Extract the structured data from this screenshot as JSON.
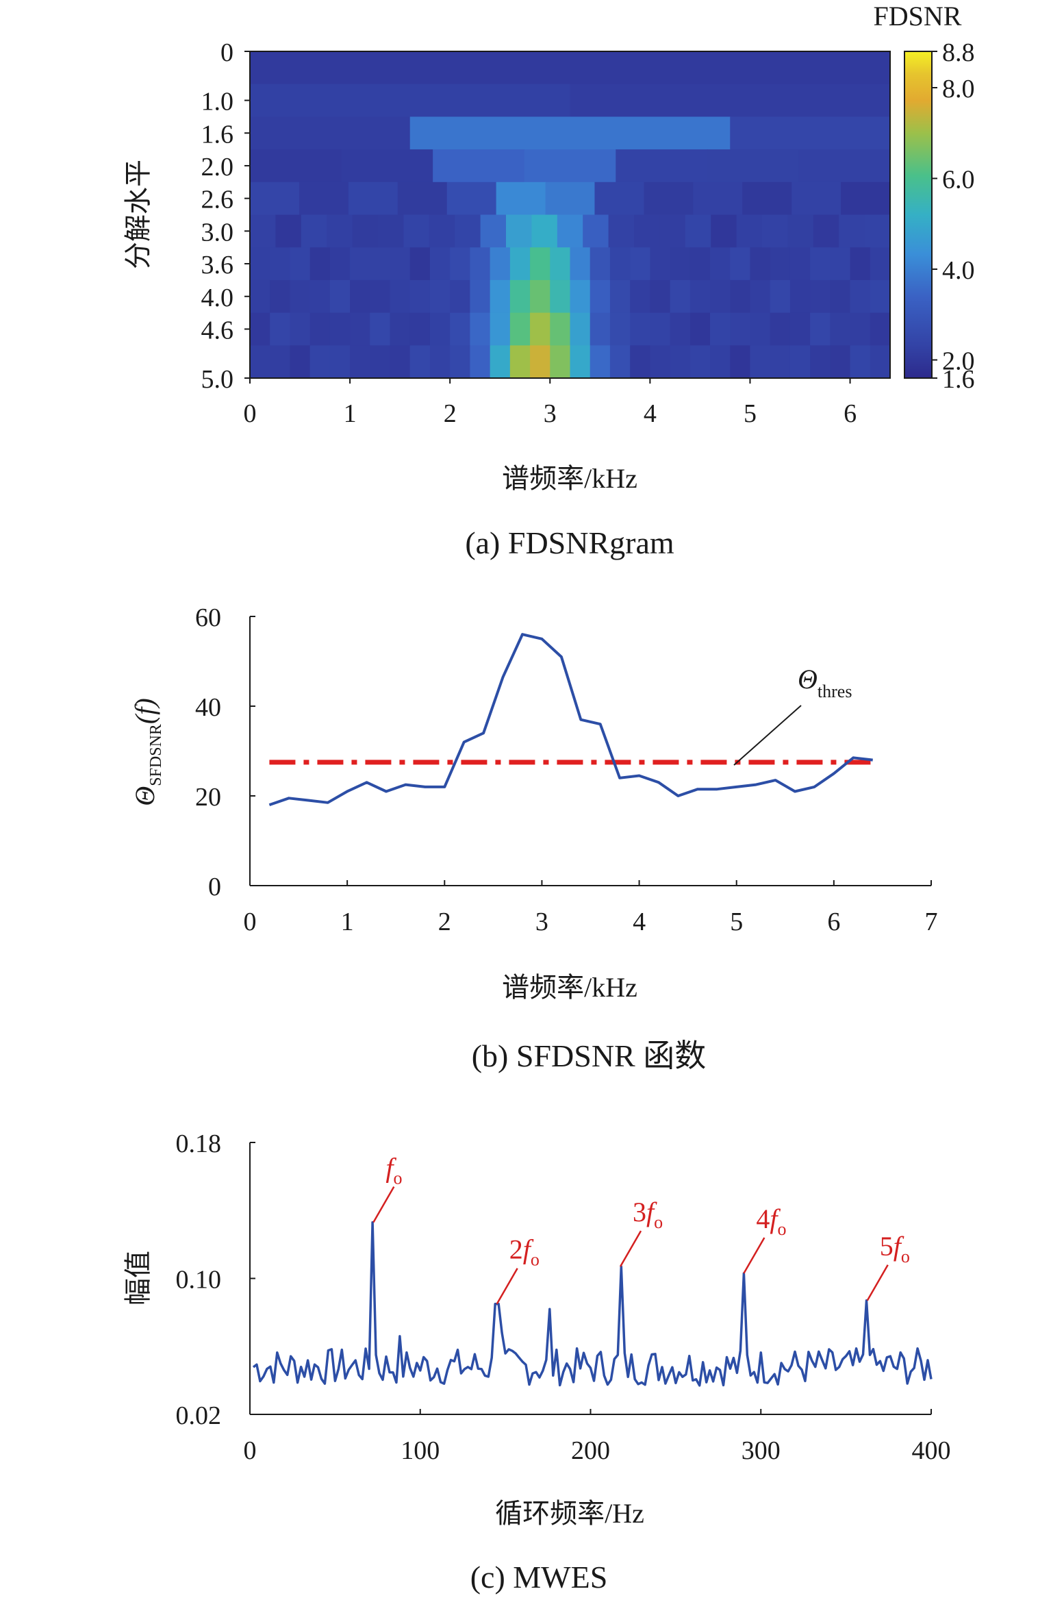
{
  "figure": {
    "caption_a": "(a) FDSNRgram",
    "caption_b": "(b) SFDSNR 函数",
    "caption_c": "(c) MWES"
  },
  "chart_data": [
    {
      "type": "heatmap",
      "id": "a",
      "xlabel": "谱频率/kHz",
      "ylabel": "分解水平",
      "colorbar_label": "FDSNR",
      "colorbar_ticks": [
        "8.8",
        "8.0",
        "6.0",
        "4.0",
        "2.0",
        "1.6"
      ],
      "colorbar_range": [
        1.6,
        8.8
      ],
      "x_range": [
        0,
        6.4
      ],
      "x_ticks": [
        "0",
        "1",
        "2",
        "3",
        "4",
        "5",
        "6"
      ],
      "y_tick_labels": [
        "0",
        "1.0",
        "1.6",
        "2.0",
        "2.6",
        "3.0",
        "3.6",
        "4.0",
        "4.6",
        "5.0"
      ],
      "grid": false
    },
    {
      "type": "line",
      "id": "b",
      "xlabel": "谱频率/kHz",
      "ylabel_main": "Θ",
      "ylabel_sub": "SFDSNR",
      "ylabel_arg": "(f)",
      "annotation_main": "Θ",
      "annotation_sub": "thres",
      "xlim": [
        0,
        7
      ],
      "ylim": [
        0,
        60
      ],
      "x_ticks": [
        "0",
        "1",
        "2",
        "3",
        "4",
        "5",
        "6",
        "7"
      ],
      "y_ticks": [
        "0",
        "20",
        "40",
        "60"
      ],
      "threshold": 27.5,
      "threshold_color": "#e02020",
      "series_color": "#2c4ea6",
      "x": [
        0.2,
        0.4,
        0.6,
        0.8,
        1.0,
        1.2,
        1.4,
        1.6,
        1.8,
        2.0,
        2.2,
        2.4,
        2.6,
        2.8,
        3.0,
        3.2,
        3.4,
        3.6,
        3.8,
        4.0,
        4.2,
        4.4,
        4.6,
        4.8,
        5.0,
        5.2,
        5.4,
        5.6,
        5.8,
        6.0,
        6.2,
        6.4
      ],
      "y": [
        18.0,
        19.5,
        19.0,
        18.5,
        21.0,
        23.0,
        21.0,
        22.5,
        22.0,
        22.0,
        32.0,
        34.0,
        46.5,
        56.0,
        55.0,
        51.0,
        37.0,
        36.0,
        24.0,
        24.5,
        23.0,
        20.0,
        21.5,
        21.5,
        22.0,
        22.5,
        23.5,
        21.0,
        22.0,
        25.0,
        28.5,
        28.0
      ],
      "grid": false
    },
    {
      "type": "line",
      "id": "c",
      "xlabel": "循环频率/Hz",
      "ylabel": "幅值",
      "xlim": [
        0,
        400
      ],
      "ylim": [
        0.02,
        0.18
      ],
      "x_ticks": [
        "0",
        "100",
        "200",
        "300",
        "400"
      ],
      "y_ticks": [
        "0.02",
        "0.10",
        "0.18"
      ],
      "series_color": "#2c4ea6",
      "annotation_color": "#d42020",
      "peaks": [
        {
          "x": 72.5,
          "y": 0.133,
          "label_coef": "",
          "label_var": "f",
          "label_sub": "o"
        },
        {
          "x": 145,
          "y": 0.085,
          "label_coef": "2",
          "label_var": "f",
          "label_sub": "o"
        },
        {
          "x": 217.5,
          "y": 0.107,
          "label_coef": "3",
          "label_var": "f",
          "label_sub": "o"
        },
        {
          "x": 290,
          "y": 0.103,
          "label_coef": "4",
          "label_var": "f",
          "label_sub": "o"
        },
        {
          "x": 362.5,
          "y": 0.087,
          "label_coef": "5",
          "label_var": "f",
          "label_sub": "o"
        }
      ],
      "grid": false
    }
  ]
}
